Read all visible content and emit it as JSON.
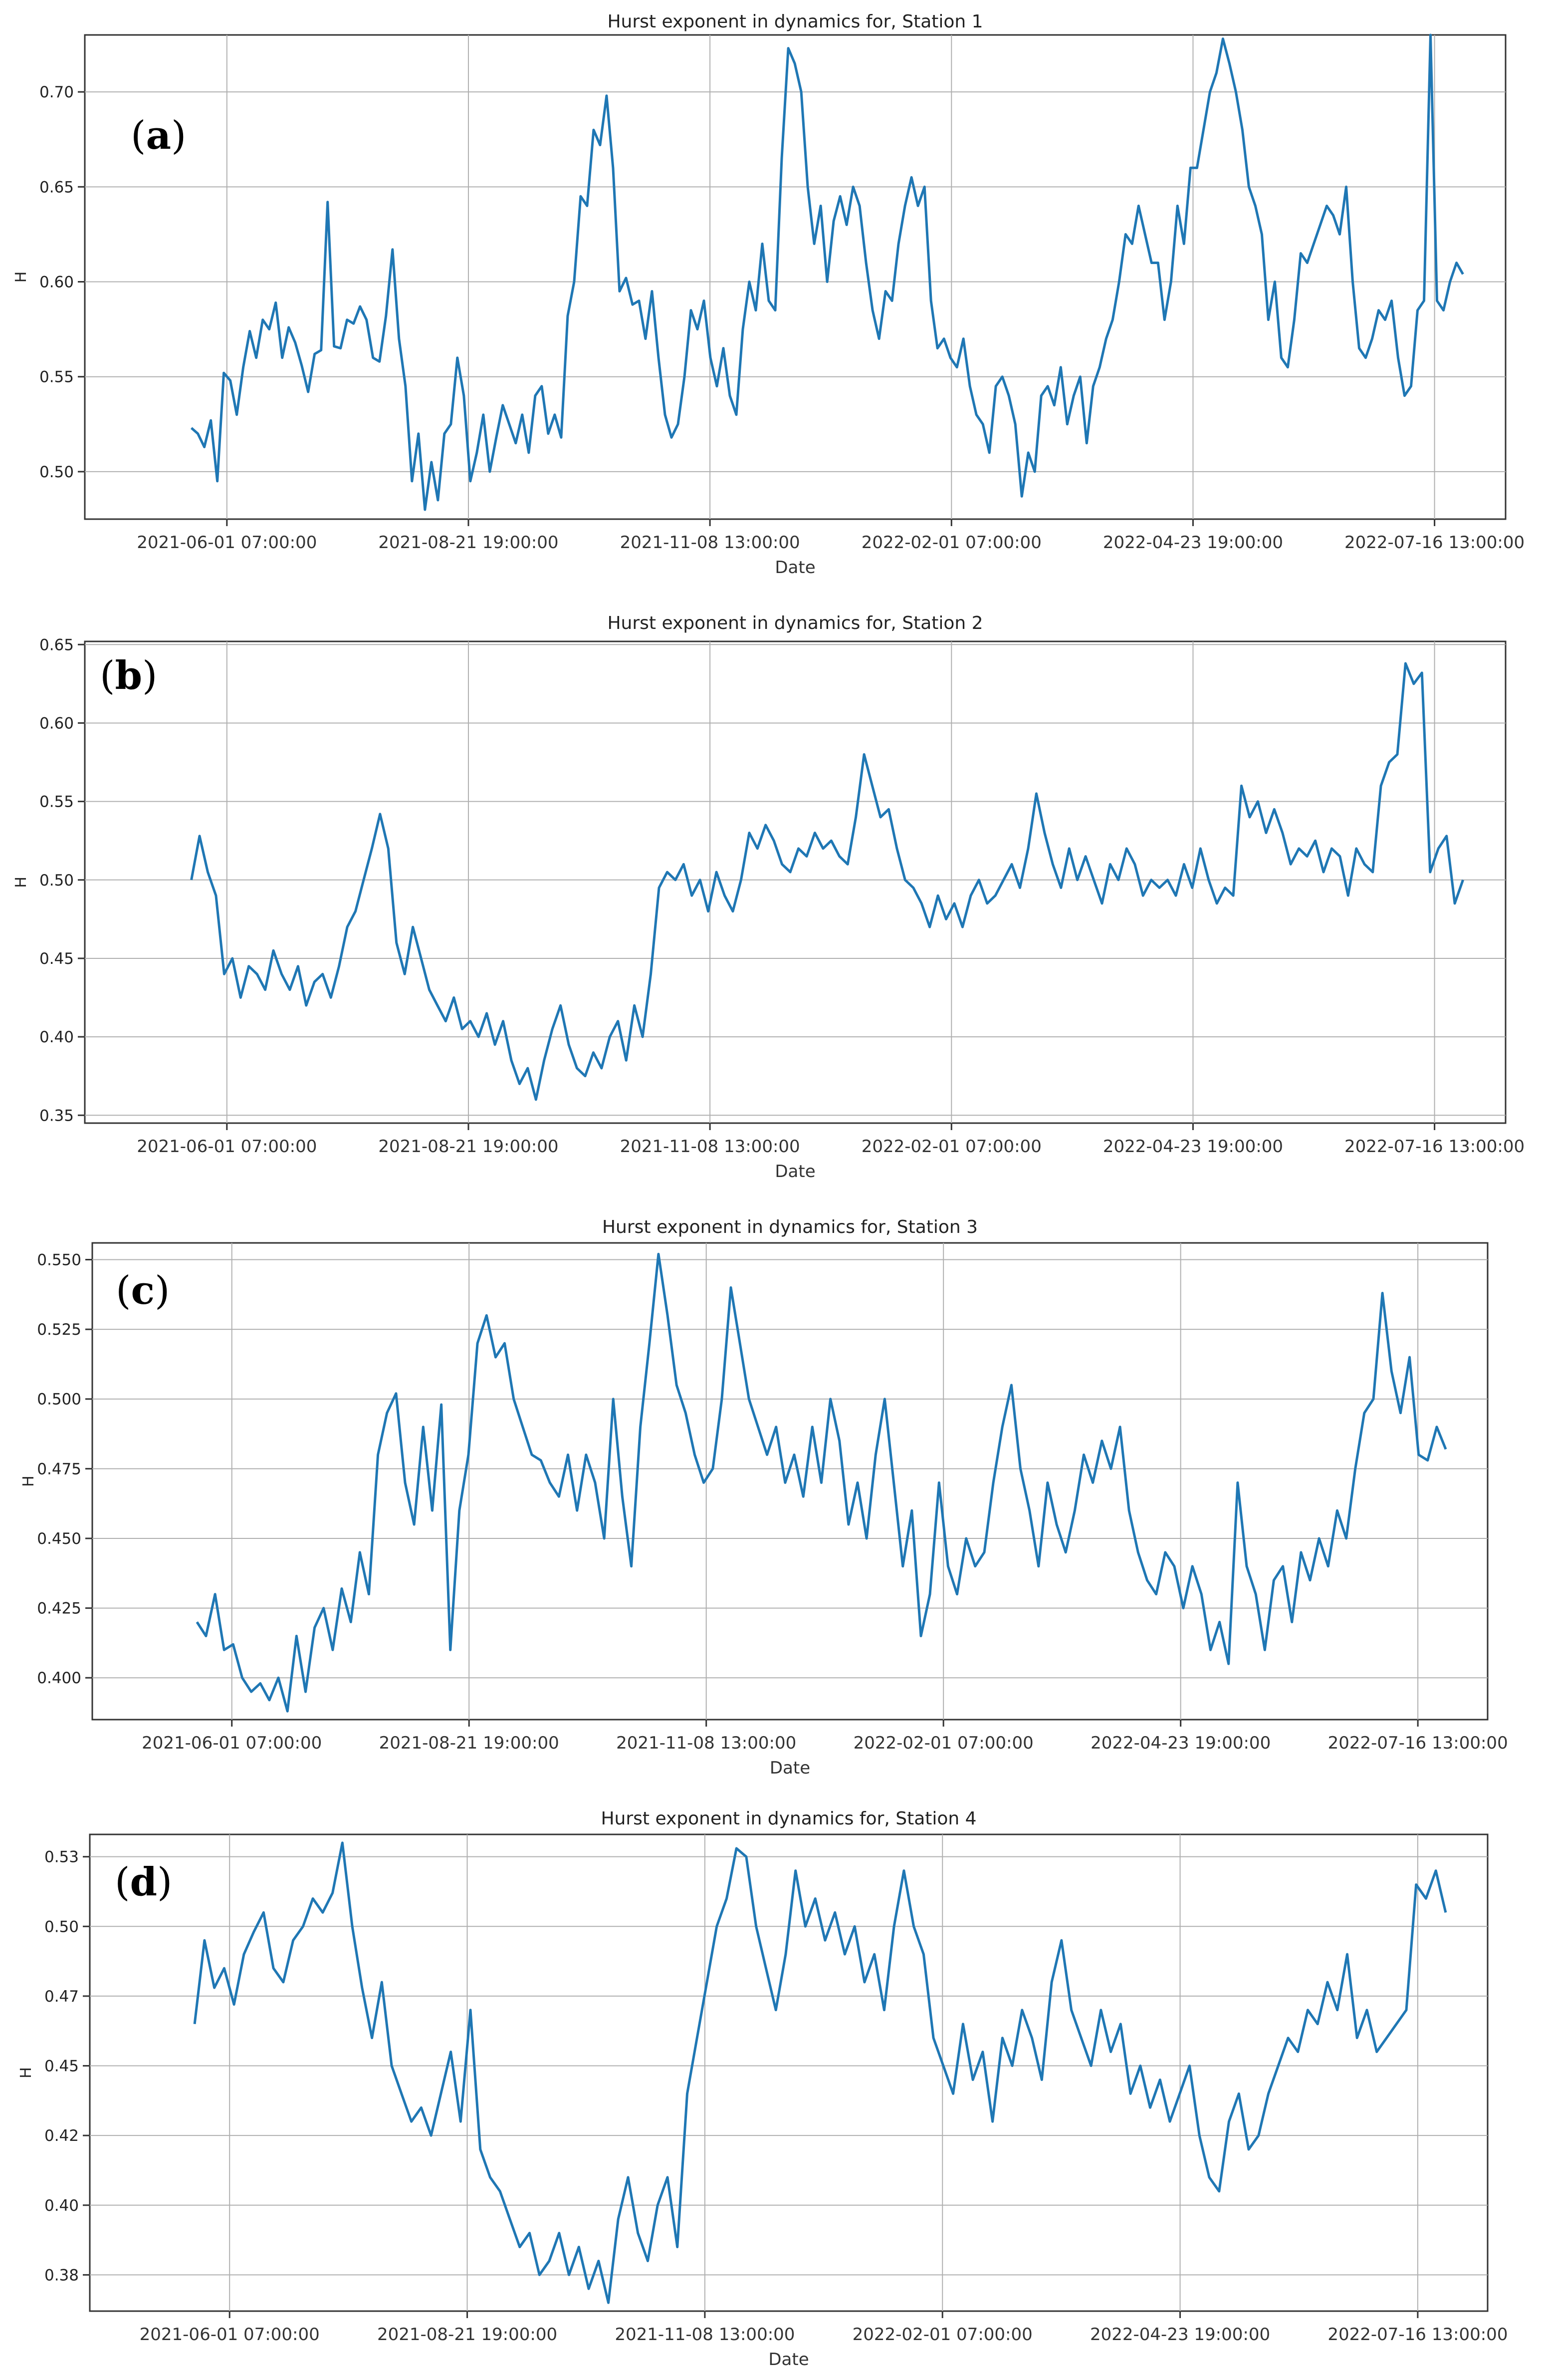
{
  "chart_data": [
    {
      "type": "line",
      "panel_label": "a",
      "title": "Hurst exponent in dynamics for, Station 1",
      "xlabel": "Date",
      "ylabel": "H",
      "x_ticks": [
        "2021-06-01 07:00:00",
        "2021-08-21 19:00:00",
        "2021-11-08 13:00:00",
        "2022-02-01 07:00:00",
        "2022-04-23 19:00:00",
        "2022-07-16 13:00:00"
      ],
      "y_ticks": [
        0.5,
        0.55,
        0.6,
        0.65,
        0.7
      ],
      "ylim": [
        0.475,
        0.73
      ],
      "grid": true,
      "color": "#1f77b4",
      "series": [
        {
          "name": "Station 1",
          "values": [
            0.523,
            0.52,
            0.513,
            0.527,
            0.495,
            0.552,
            0.548,
            0.53,
            0.555,
            0.574,
            0.56,
            0.58,
            0.575,
            0.589,
            0.56,
            0.576,
            0.568,
            0.556,
            0.542,
            0.562,
            0.564,
            0.642,
            0.566,
            0.565,
            0.58,
            0.578,
            0.587,
            0.58,
            0.56,
            0.558,
            0.582,
            0.617,
            0.57,
            0.545,
            0.495,
            0.52,
            0.48,
            0.505,
            0.485,
            0.52,
            0.525,
            0.56,
            0.54,
            0.495,
            0.51,
            0.53,
            0.5,
            0.518,
            0.535,
            0.525,
            0.515,
            0.53,
            0.51,
            0.54,
            0.545,
            0.52,
            0.53,
            0.518,
            0.582,
            0.6,
            0.645,
            0.64,
            0.68,
            0.672,
            0.698,
            0.66,
            0.595,
            0.602,
            0.588,
            0.59,
            0.57,
            0.595,
            0.56,
            0.53,
            0.518,
            0.525,
            0.55,
            0.585,
            0.575,
            0.59,
            0.56,
            0.545,
            0.565,
            0.54,
            0.53,
            0.575,
            0.6,
            0.585,
            0.62,
            0.59,
            0.585,
            0.665,
            0.723,
            0.715,
            0.7,
            0.65,
            0.62,
            0.64,
            0.6,
            0.632,
            0.645,
            0.63,
            0.65,
            0.64,
            0.61,
            0.585,
            0.57,
            0.595,
            0.59,
            0.62,
            0.64,
            0.655,
            0.64,
            0.65,
            0.59,
            0.565,
            0.57,
            0.56,
            0.555,
            0.57,
            0.545,
            0.53,
            0.525,
            0.51,
            0.545,
            0.55,
            0.54,
            0.525,
            0.487,
            0.51,
            0.5,
            0.54,
            0.545,
            0.535,
            0.555,
            0.525,
            0.54,
            0.55,
            0.515,
            0.545,
            0.555,
            0.57,
            0.58,
            0.6,
            0.625,
            0.62,
            0.64,
            0.625,
            0.61,
            0.61,
            0.58,
            0.6,
            0.64,
            0.62,
            0.66,
            0.66,
            0.68,
            0.7,
            0.71,
            0.728,
            0.715,
            0.7,
            0.68,
            0.65,
            0.64,
            0.625,
            0.58,
            0.6,
            0.56,
            0.555,
            0.58,
            0.615,
            0.61,
            0.62,
            0.63,
            0.64,
            0.635,
            0.625,
            0.65,
            0.6,
            0.565,
            0.56,
            0.57,
            0.585,
            0.58,
            0.59,
            0.56,
            0.54,
            0.545,
            0.585,
            0.59,
            0.73,
            0.59,
            0.585,
            0.6,
            0.61,
            0.604
          ]
        }
      ]
    },
    {
      "type": "line",
      "panel_label": "b",
      "title": "Hurst exponent in dynamics for, Station 2",
      "xlabel": "Date",
      "ylabel": "H",
      "x_ticks": [
        "2021-06-01 07:00:00",
        "2021-08-21 19:00:00",
        "2021-11-08 13:00:00",
        "2022-02-01 07:00:00",
        "2022-04-23 19:00:00",
        "2022-07-16 13:00:00"
      ],
      "y_ticks": [
        0.35,
        0.4,
        0.45,
        0.5,
        0.55,
        0.6,
        0.65
      ],
      "ylim": [
        0.345,
        0.652
      ],
      "grid": true,
      "color": "#1f77b4",
      "series": [
        {
          "name": "Station 2",
          "values": [
            0.5,
            0.528,
            0.505,
            0.49,
            0.44,
            0.45,
            0.425,
            0.445,
            0.44,
            0.43,
            0.455,
            0.44,
            0.43,
            0.445,
            0.42,
            0.435,
            0.44,
            0.425,
            0.445,
            0.47,
            0.48,
            0.5,
            0.52,
            0.542,
            0.52,
            0.46,
            0.44,
            0.47,
            0.45,
            0.43,
            0.42,
            0.41,
            0.425,
            0.405,
            0.41,
            0.4,
            0.415,
            0.395,
            0.41,
            0.385,
            0.37,
            0.38,
            0.36,
            0.385,
            0.405,
            0.42,
            0.395,
            0.38,
            0.375,
            0.39,
            0.38,
            0.4,
            0.41,
            0.385,
            0.42,
            0.4,
            0.44,
            0.495,
            0.505,
            0.5,
            0.51,
            0.49,
            0.5,
            0.48,
            0.505,
            0.49,
            0.48,
            0.5,
            0.53,
            0.52,
            0.535,
            0.525,
            0.51,
            0.505,
            0.52,
            0.515,
            0.53,
            0.52,
            0.525,
            0.515,
            0.51,
            0.54,
            0.58,
            0.56,
            0.54,
            0.545,
            0.52,
            0.5,
            0.495,
            0.485,
            0.47,
            0.49,
            0.475,
            0.485,
            0.47,
            0.49,
            0.5,
            0.485,
            0.49,
            0.5,
            0.51,
            0.495,
            0.52,
            0.555,
            0.53,
            0.51,
            0.495,
            0.52,
            0.5,
            0.515,
            0.5,
            0.485,
            0.51,
            0.5,
            0.52,
            0.51,
            0.49,
            0.5,
            0.495,
            0.5,
            0.49,
            0.51,
            0.495,
            0.52,
            0.5,
            0.485,
            0.495,
            0.49,
            0.56,
            0.54,
            0.55,
            0.53,
            0.545,
            0.53,
            0.51,
            0.52,
            0.515,
            0.525,
            0.505,
            0.52,
            0.515,
            0.49,
            0.52,
            0.51,
            0.505,
            0.56,
            0.575,
            0.58,
            0.638,
            0.625,
            0.632,
            0.505,
            0.52,
            0.528,
            0.485,
            0.5
          ]
        }
      ]
    },
    {
      "type": "line",
      "panel_label": "c",
      "title": "Hurst exponent in dynamics for, Station 3",
      "xlabel": "Date",
      "ylabel": "H",
      "x_ticks": [
        "2021-06-01 07:00:00",
        "2021-08-21 19:00:00",
        "2021-11-08 13:00:00",
        "2022-02-01 07:00:00",
        "2022-04-23 19:00:00",
        "2022-07-16 13:00:00"
      ],
      "y_ticks": [
        0.4,
        0.425,
        0.45,
        0.475,
        0.5,
        0.525,
        0.55
      ],
      "ylim": [
        0.385,
        0.556
      ],
      "grid": true,
      "color": "#1f77b4",
      "series": [
        {
          "name": "Station 3",
          "values": [
            0.42,
            0.415,
            0.43,
            0.41,
            0.412,
            0.4,
            0.395,
            0.398,
            0.392,
            0.4,
            0.388,
            0.415,
            0.395,
            0.418,
            0.425,
            0.41,
            0.432,
            0.42,
            0.445,
            0.43,
            0.48,
            0.495,
            0.502,
            0.47,
            0.455,
            0.49,
            0.46,
            0.498,
            0.41,
            0.46,
            0.48,
            0.52,
            0.53,
            0.515,
            0.52,
            0.5,
            0.49,
            0.48,
            0.478,
            0.47,
            0.465,
            0.48,
            0.46,
            0.48,
            0.47,
            0.45,
            0.5,
            0.465,
            0.44,
            0.49,
            0.52,
            0.552,
            0.53,
            0.505,
            0.495,
            0.48,
            0.47,
            0.475,
            0.5,
            0.54,
            0.52,
            0.5,
            0.49,
            0.48,
            0.49,
            0.47,
            0.48,
            0.465,
            0.49,
            0.47,
            0.5,
            0.485,
            0.455,
            0.47,
            0.45,
            0.48,
            0.5,
            0.47,
            0.44,
            0.46,
            0.415,
            0.43,
            0.47,
            0.44,
            0.43,
            0.45,
            0.44,
            0.445,
            0.47,
            0.49,
            0.505,
            0.475,
            0.46,
            0.44,
            0.47,
            0.455,
            0.445,
            0.46,
            0.48,
            0.47,
            0.485,
            0.475,
            0.49,
            0.46,
            0.445,
            0.435,
            0.43,
            0.445,
            0.44,
            0.425,
            0.44,
            0.43,
            0.41,
            0.42,
            0.405,
            0.47,
            0.44,
            0.43,
            0.41,
            0.435,
            0.44,
            0.42,
            0.445,
            0.435,
            0.45,
            0.44,
            0.46,
            0.45,
            0.475,
            0.495,
            0.5,
            0.538,
            0.51,
            0.495,
            0.515,
            0.48,
            0.478,
            0.49,
            0.482
          ]
        }
      ]
    },
    {
      "type": "line",
      "panel_label": "d",
      "title": "Hurst exponent in dynamics for, Station 4",
      "xlabel": "Date",
      "ylabel": "H",
      "x_ticks": [
        "2021-06-01 07:00:00",
        "2021-08-21 19:00:00",
        "2021-11-08 13:00:00",
        "2022-02-01 07:00:00",
        "2022-04-23 19:00:00",
        "2022-07-16 13:00:00"
      ],
      "y_ticks": [
        0.375,
        0.4,
        0.425,
        0.45,
        0.475,
        0.5,
        0.525
      ],
      "ylim": [
        0.362,
        0.533
      ],
      "grid": true,
      "color": "#1f77b4",
      "series": [
        {
          "name": "Station 4",
          "values": [
            0.465,
            0.495,
            0.478,
            0.485,
            0.472,
            0.49,
            0.498,
            0.505,
            0.485,
            0.48,
            0.495,
            0.5,
            0.51,
            0.505,
            0.512,
            0.53,
            0.5,
            0.478,
            0.46,
            0.48,
            0.45,
            0.44,
            0.43,
            0.435,
            0.425,
            0.44,
            0.455,
            0.43,
            0.47,
            0.42,
            0.41,
            0.405,
            0.395,
            0.385,
            0.39,
            0.375,
            0.38,
            0.39,
            0.375,
            0.385,
            0.37,
            0.38,
            0.365,
            0.395,
            0.41,
            0.39,
            0.38,
            0.4,
            0.41,
            0.385,
            0.44,
            0.46,
            0.48,
            0.5,
            0.51,
            0.528,
            0.525,
            0.5,
            0.485,
            0.47,
            0.49,
            0.52,
            0.5,
            0.51,
            0.495,
            0.505,
            0.49,
            0.5,
            0.48,
            0.49,
            0.47,
            0.5,
            0.52,
            0.5,
            0.49,
            0.46,
            0.45,
            0.44,
            0.465,
            0.445,
            0.455,
            0.43,
            0.46,
            0.45,
            0.47,
            0.46,
            0.445,
            0.48,
            0.495,
            0.47,
            0.46,
            0.45,
            0.47,
            0.455,
            0.465,
            0.44,
            0.45,
            0.435,
            0.445,
            0.43,
            0.44,
            0.45,
            0.425,
            0.41,
            0.405,
            0.43,
            0.44,
            0.42,
            0.425,
            0.44,
            0.45,
            0.46,
            0.455,
            0.47,
            0.465,
            0.48,
            0.47,
            0.49,
            0.46,
            0.47,
            0.455,
            0.46,
            0.465,
            0.47,
            0.515,
            0.51,
            0.52,
            0.505
          ]
        }
      ]
    }
  ]
}
